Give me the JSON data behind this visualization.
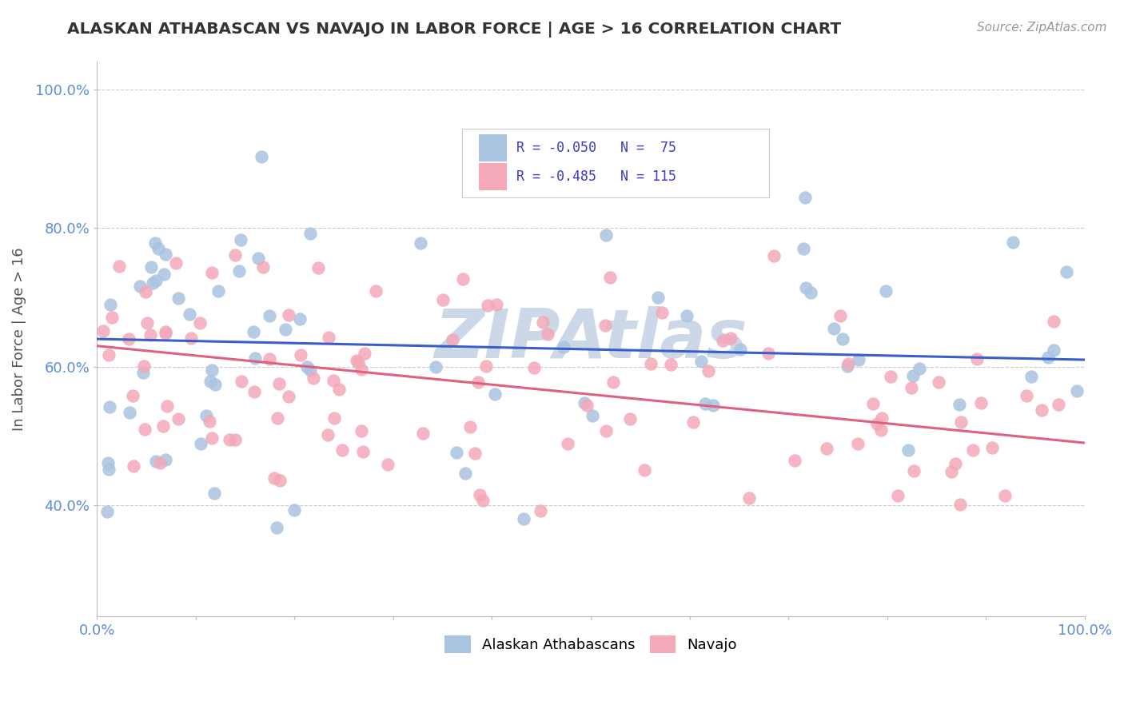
{
  "title": "ALASKAN ATHABASCAN VS NAVAJO IN LABOR FORCE | AGE > 16 CORRELATION CHART",
  "source_text": "Source: ZipAtlas.com",
  "ylabel": "In Labor Force | Age > 16",
  "xlim": [
    0.0,
    1.0
  ],
  "ylim": [
    0.24,
    1.04
  ],
  "y_ticks": [
    0.4,
    0.6,
    0.8,
    1.0
  ],
  "y_tick_labels": [
    "40.0%",
    "60.0%",
    "80.0%",
    "100.0%"
  ],
  "x_tick_labels": [
    "0.0%",
    "",
    "",
    "",
    "",
    "",
    "",
    "",
    "",
    "",
    "100.0%"
  ],
  "color_blue": "#a8c4e0",
  "color_pink": "#f4a8b8",
  "color_blue_line": "#3a5fcd",
  "color_pink_line": "#e06080",
  "color_tick": "#5b8dd9",
  "watermark": "ZIPAtlas",
  "watermark_color": "#ccd8e8",
  "legend_label1": "Alaskan Athabascans",
  "legend_label2": "Navajo",
  "background_color": "#ffffff",
  "grid_color": "#cccccc",
  "title_color": "#333333",
  "source_color": "#999999",
  "ylabel_color": "#555555"
}
